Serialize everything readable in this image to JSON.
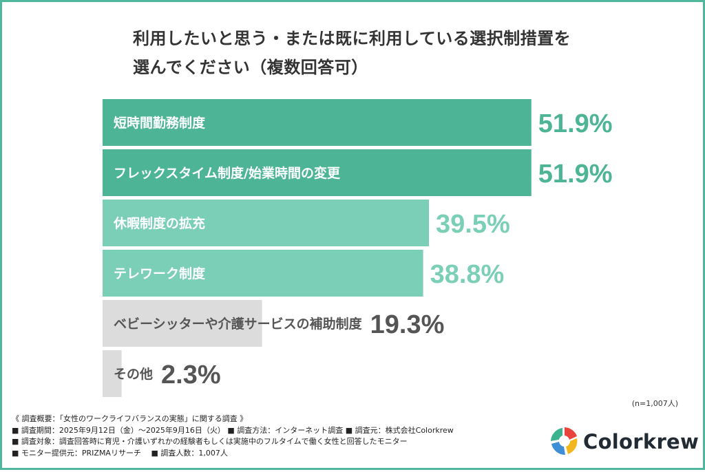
{
  "title_line1": "利用したいと思う・または既に利用している選択制措置を",
  "title_line2": "選んでください（複数回答可）",
  "chart_data": {
    "type": "bar",
    "orientation": "horizontal",
    "categories": [
      "短時間勤務制度",
      "フレックスタイム制度/始業時間の変更",
      "休暇制度の拡充",
      "テレワーク制度",
      "ベビーシッターや介護サービスの補助制度",
      "その他"
    ],
    "values": [
      51.9,
      51.9,
      39.5,
      38.8,
      19.3,
      2.3
    ],
    "value_labels": [
      "51.9%",
      "51.9%",
      "39.5%",
      "38.8%",
      "19.3%",
      "2.3%"
    ],
    "bar_colors": [
      "#4db595",
      "#4db595",
      "#7ccfb7",
      "#7ccfb7",
      "#dcdcdc",
      "#dcdcdc"
    ],
    "label_colors": [
      "#4db595",
      "#4db595",
      "#7ccfb7",
      "#7ccfb7",
      "#555555",
      "#555555"
    ],
    "category_text_colors": [
      "#ffffff",
      "#ffffff",
      "#ffffff",
      "#ffffff",
      "#555555",
      "#555555"
    ],
    "xlim": [
      0,
      100
    ],
    "grid": false
  },
  "sample_note": "(n=1,007人)",
  "survey_notes": [
    "《 調査概要：「女性のワークライフバランスの実態」に関する調査 》",
    "■ 調査期間：2025年9月12日（金）〜2025年9月16日（火） ■ 調査方法：インターネット調査 ■ 調査元：株式会社Colorkrew",
    "■ 調査対象：調査回答時に育児・介護いずれかの経験者もしくは実施中のフルタイムで働く女性と回答したモニター",
    "■ モニター提供元：PRIZMAリサーチ　 ■ 調査人数：1,007人"
  ],
  "logo": {
    "text": "Colorkrew",
    "colors": [
      "#e8433d",
      "#f2b61f",
      "#3f8fd6",
      "#3bb38f"
    ]
  }
}
